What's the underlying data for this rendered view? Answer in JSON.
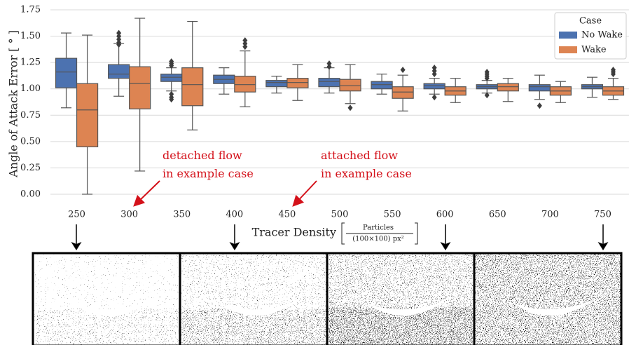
{
  "chart_data": {
    "type": "box",
    "y_label": "Angle of Attack Error [ ° ]",
    "x_label": "Tracer Density",
    "x_unit_numerator": "Particles",
    "x_unit_denominator": "(100×100) px²",
    "categories": [
      "250",
      "300",
      "350",
      "400",
      "450",
      "500",
      "550",
      "600",
      "650",
      "700",
      "750"
    ],
    "ylim": [
      -0.08,
      1.79
    ],
    "yticks": [
      {
        "value": 0,
        "label": "0.00"
      },
      {
        "value": 0.25,
        "label": "0.25"
      },
      {
        "value": 0.5,
        "label": "0.50"
      },
      {
        "value": 0.75,
        "label": "0.75"
      },
      {
        "value": 1,
        "label": "1.00"
      },
      {
        "value": 1.25,
        "label": "1.25"
      },
      {
        "value": 1.5,
        "label": "1.50"
      },
      {
        "value": 1.75,
        "label": "1.75"
      }
    ],
    "grid": true,
    "legend_title": "Case",
    "legend_position": "upper right",
    "series": [
      {
        "name": "No Wake",
        "color": "#4c72b0",
        "whisker_low": [
          0.82,
          0.93,
          0.98,
          0.95,
          0.96,
          0.96,
          0.95,
          0.95,
          0.96,
          0.9,
          0.92
        ],
        "q1": [
          1.01,
          1.1,
          1.07,
          1.05,
          1.02,
          1.02,
          1.0,
          1.0,
          1.0,
          0.98,
          1.0
        ],
        "median": [
          1.16,
          1.14,
          1.11,
          1.09,
          1.06,
          1.07,
          1.04,
          1.03,
          1.02,
          1.02,
          1.02
        ],
        "q3": [
          1.29,
          1.23,
          1.14,
          1.13,
          1.08,
          1.1,
          1.07,
          1.05,
          1.04,
          1.04,
          1.04
        ],
        "whisker_high": [
          1.53,
          1.43,
          1.2,
          1.2,
          1.12,
          1.2,
          1.14,
          1.1,
          1.08,
          1.13,
          1.11
        ],
        "outliers": [
          [],
          [
            1.53,
            1.5,
            1.47,
            1.44,
            1.42
          ],
          [
            1.26,
            1.24,
            1.22,
            0.95,
            0.92,
            0.9
          ],
          [],
          [],
          [
            1.24,
            1.21
          ],
          [],
          [
            1.2,
            1.17,
            1.14,
            0.92
          ],
          [
            1.16,
            1.14,
            1.12,
            1.1,
            0.94
          ],
          [
            0.84
          ],
          []
        ]
      },
      {
        "name": "Wake",
        "color": "#dd8452",
        "whisker_low": [
          0.0,
          0.22,
          0.61,
          0.83,
          0.89,
          0.86,
          0.79,
          0.87,
          0.88,
          0.87,
          0.9
        ],
        "q1": [
          0.45,
          0.81,
          0.84,
          0.97,
          1.01,
          0.98,
          0.91,
          0.94,
          0.98,
          0.94,
          0.94
        ],
        "median": [
          0.8,
          1.05,
          1.04,
          1.04,
          1.06,
          1.03,
          0.97,
          0.98,
          1.02,
          0.98,
          0.98
        ],
        "q3": [
          1.05,
          1.21,
          1.2,
          1.12,
          1.1,
          1.09,
          1.02,
          1.02,
          1.05,
          1.02,
          1.02
        ],
        "whisker_high": [
          1.51,
          1.67,
          1.64,
          1.36,
          1.23,
          1.23,
          1.13,
          1.1,
          1.1,
          1.07,
          1.1
        ],
        "outliers": [
          [],
          [],
          [],
          [
            1.46,
            1.43,
            1.4
          ],
          [],
          [
            0.82
          ],
          [
            1.18
          ],
          [],
          [],
          [],
          [
            1.18,
            1.16,
            1.14
          ]
        ]
      }
    ],
    "annotations": [
      {
        "lines": [
          "detached flow",
          "in example case"
        ]
      },
      {
        "lines": [
          "attached flow",
          "in example case"
        ]
      }
    ]
  }
}
